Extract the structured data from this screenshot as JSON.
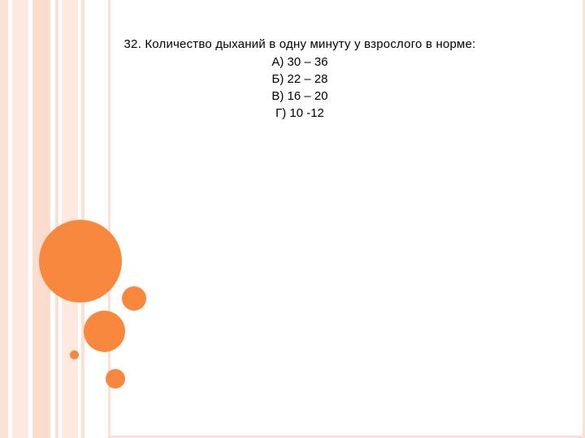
{
  "slide": {
    "question": "32. Количество дыханий в одну минуту у взрослого в норме:",
    "options": [
      "А) 30 – 36",
      "Б) 22 – 28",
      "В) 16 – 20",
      "Г) 10 -12"
    ]
  },
  "theme": {
    "accent_color": "#f7883d",
    "stripe_color": "#fbe1d5"
  }
}
